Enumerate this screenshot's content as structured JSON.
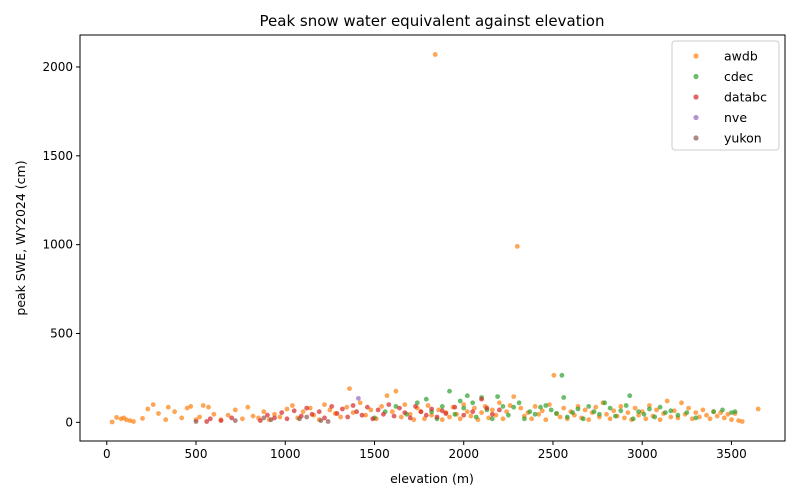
{
  "chart_data": {
    "type": "scatter",
    "title": "Peak snow water equivalent against elevation",
    "xlabel": "elevation (m)",
    "ylabel": "peak SWE, WY2024 (cm)",
    "xlim": [
      -150,
      3800
    ],
    "ylim": [
      -105,
      2180
    ],
    "xticks": [
      0,
      500,
      1000,
      1500,
      2000,
      2500,
      3000,
      3500
    ],
    "yticks": [
      0,
      500,
      1000,
      1500,
      2000
    ],
    "grid": false,
    "legend_position": "top-right",
    "series": [
      {
        "name": "awdb",
        "color": "#ff7f0e",
        "points": [
          [
            30,
            2
          ],
          [
            55,
            28
          ],
          [
            80,
            20
          ],
          [
            95,
            25
          ],
          [
            110,
            15
          ],
          [
            130,
            10
          ],
          [
            150,
            5
          ],
          [
            200,
            22
          ],
          [
            230,
            75
          ],
          [
            260,
            100
          ],
          [
            290,
            50
          ],
          [
            330,
            15
          ],
          [
            345,
            85
          ],
          [
            380,
            60
          ],
          [
            420,
            25
          ],
          [
            450,
            80
          ],
          [
            470,
            90
          ],
          [
            500,
            15
          ],
          [
            520,
            30
          ],
          [
            540,
            95
          ],
          [
            570,
            85
          ],
          [
            600,
            45
          ],
          [
            640,
            15
          ],
          [
            680,
            40
          ],
          [
            720,
            70
          ],
          [
            760,
            20
          ],
          [
            790,
            85
          ],
          [
            820,
            35
          ],
          [
            850,
            25
          ],
          [
            880,
            60
          ],
          [
            910,
            15
          ],
          [
            940,
            45
          ],
          [
            970,
            30
          ],
          [
            1010,
            75
          ],
          [
            1040,
            95
          ],
          [
            1070,
            25
          ],
          [
            1100,
            60
          ],
          [
            1140,
            80
          ],
          [
            1160,
            40
          ],
          [
            1190,
            15
          ],
          [
            1220,
            100
          ],
          [
            1250,
            70
          ],
          [
            1280,
            50
          ],
          [
            1310,
            30
          ],
          [
            1345,
            85
          ],
          [
            1360,
            190
          ],
          [
            1380,
            55
          ],
          [
            1420,
            110
          ],
          [
            1450,
            40
          ],
          [
            1480,
            70
          ],
          [
            1510,
            20
          ],
          [
            1540,
            90
          ],
          [
            1570,
            150
          ],
          [
            1600,
            60
          ],
          [
            1620,
            175
          ],
          [
            1650,
            30
          ],
          [
            1670,
            100
          ],
          [
            1700,
            45
          ],
          [
            1720,
            15
          ],
          [
            1740,
            80
          ],
          [
            1760,
            60
          ],
          [
            1780,
            20
          ],
          [
            1800,
            95
          ],
          [
            1820,
            40
          ],
          [
            1840,
            2070
          ],
          [
            1860,
            70
          ],
          [
            1880,
            15
          ],
          [
            1900,
            55
          ],
          [
            1920,
            30
          ],
          [
            1940,
            85
          ],
          [
            1960,
            45
          ],
          [
            1980,
            20
          ],
          [
            2000,
            100
          ],
          [
            2020,
            60
          ],
          [
            2040,
            35
          ],
          [
            2060,
            80
          ],
          [
            2080,
            15
          ],
          [
            2100,
            55
          ],
          [
            2120,
            90
          ],
          [
            2140,
            25
          ],
          [
            2160,
            70
          ],
          [
            2180,
            40
          ],
          [
            2200,
            110
          ],
          [
            2220,
            20
          ],
          [
            2240,
            60
          ],
          [
            2260,
            95
          ],
          [
            2280,
            145
          ],
          [
            2300,
            990
          ],
          [
            2320,
            80
          ],
          [
            2340,
            35
          ],
          [
            2360,
            55
          ],
          [
            2380,
            20
          ],
          [
            2400,
            90
          ],
          [
            2420,
            45
          ],
          [
            2440,
            65
          ],
          [
            2460,
            15
          ],
          [
            2480,
            100
          ],
          [
            2505,
            265
          ],
          [
            2520,
            50
          ],
          [
            2540,
            30
          ],
          [
            2560,
            80
          ],
          [
            2580,
            20
          ],
          [
            2600,
            60
          ],
          [
            2620,
            40
          ],
          [
            2640,
            90
          ],
          [
            2660,
            25
          ],
          [
            2680,
            70
          ],
          [
            2700,
            15
          ],
          [
            2720,
            55
          ],
          [
            2740,
            85
          ],
          [
            2760,
            30
          ],
          [
            2780,
            110
          ],
          [
            2800,
            45
          ],
          [
            2820,
            20
          ],
          [
            2840,
            65
          ],
          [
            2860,
            35
          ],
          [
            2880,
            90
          ],
          [
            2900,
            25
          ],
          [
            2920,
            55
          ],
          [
            2940,
            15
          ],
          [
            2960,
            80
          ],
          [
            2980,
            40
          ],
          [
            3000,
            60
          ],
          [
            3020,
            20
          ],
          [
            3040,
            95
          ],
          [
            3060,
            35
          ],
          [
            3080,
            70
          ],
          [
            3100,
            15
          ],
          [
            3120,
            50
          ],
          [
            3140,
            120
          ],
          [
            3160,
            30
          ],
          [
            3180,
            65
          ],
          [
            3200,
            25
          ],
          [
            3220,
            110
          ],
          [
            3240,
            45
          ],
          [
            3260,
            80
          ],
          [
            3280,
            20
          ],
          [
            3300,
            55
          ],
          [
            3320,
            30
          ],
          [
            3340,
            70
          ],
          [
            3360,
            40
          ],
          [
            3380,
            20
          ],
          [
            3400,
            60
          ],
          [
            3420,
            35
          ],
          [
            3440,
            55
          ],
          [
            3460,
            25
          ],
          [
            3480,
            45
          ],
          [
            3500,
            15
          ],
          [
            3520,
            50
          ],
          [
            3540,
            10
          ],
          [
            3560,
            5
          ],
          [
            3650,
            75
          ]
        ]
      },
      {
        "name": "cdec",
        "color": "#2ca02c",
        "points": [
          [
            1500,
            25
          ],
          [
            1560,
            60
          ],
          [
            1620,
            90
          ],
          [
            1680,
            45
          ],
          [
            1740,
            110
          ],
          [
            1790,
            130
          ],
          [
            1820,
            60
          ],
          [
            1850,
            20
          ],
          [
            1880,
            90
          ],
          [
            1920,
            175
          ],
          [
            1950,
            45
          ],
          [
            1980,
            120
          ],
          [
            2000,
            80
          ],
          [
            2020,
            150
          ],
          [
            2050,
            110
          ],
          [
            2070,
            30
          ],
          [
            2100,
            140
          ],
          [
            2130,
            70
          ],
          [
            2160,
            20
          ],
          [
            2190,
            145
          ],
          [
            2220,
            90
          ],
          [
            2250,
            40
          ],
          [
            2280,
            85
          ],
          [
            2310,
            110
          ],
          [
            2340,
            20
          ],
          [
            2370,
            60
          ],
          [
            2400,
            45
          ],
          [
            2430,
            85
          ],
          [
            2460,
            95
          ],
          [
            2490,
            70
          ],
          [
            2520,
            50
          ],
          [
            2550,
            265
          ],
          [
            2560,
            140
          ],
          [
            2580,
            30
          ],
          [
            2610,
            55
          ],
          [
            2640,
            75
          ],
          [
            2670,
            20
          ],
          [
            2700,
            90
          ],
          [
            2730,
            60
          ],
          [
            2760,
            45
          ],
          [
            2790,
            110
          ],
          [
            2820,
            80
          ],
          [
            2850,
            35
          ],
          [
            2880,
            65
          ],
          [
            2910,
            95
          ],
          [
            2930,
            150
          ],
          [
            2950,
            20
          ],
          [
            2980,
            60
          ],
          [
            3010,
            45
          ],
          [
            3040,
            75
          ],
          [
            3070,
            30
          ],
          [
            3100,
            85
          ],
          [
            3130,
            55
          ],
          [
            3160,
            65
          ],
          [
            3200,
            40
          ],
          [
            3250,
            55
          ],
          [
            3300,
            25
          ],
          [
            3400,
            60
          ],
          [
            3450,
            70
          ],
          [
            3500,
            55
          ],
          [
            3520,
            60
          ]
        ]
      },
      {
        "name": "databc",
        "color": "#d62728",
        "points": [
          [
            560,
            5
          ],
          [
            580,
            20
          ],
          [
            640,
            10
          ],
          [
            700,
            25
          ],
          [
            860,
            10
          ],
          [
            900,
            40
          ],
          [
            940,
            25
          ],
          [
            980,
            55
          ],
          [
            1010,
            20
          ],
          [
            1050,
            65
          ],
          [
            1090,
            35
          ],
          [
            1120,
            80
          ],
          [
            1150,
            45
          ],
          [
            1190,
            60
          ],
          [
            1220,
            25
          ],
          [
            1260,
            90
          ],
          [
            1290,
            50
          ],
          [
            1320,
            75
          ],
          [
            1350,
            30
          ],
          [
            1380,
            95
          ],
          [
            1400,
            60
          ],
          [
            1430,
            40
          ],
          [
            1460,
            85
          ],
          [
            1490,
            20
          ],
          [
            1520,
            70
          ],
          [
            1550,
            45
          ],
          [
            1580,
            100
          ],
          [
            1610,
            35
          ],
          [
            1640,
            80
          ],
          [
            1670,
            55
          ],
          [
            1700,
            25
          ],
          [
            1730,
            90
          ],
          [
            1760,
            60
          ],
          [
            1790,
            40
          ],
          [
            1820,
            75
          ],
          [
            1850,
            30
          ],
          [
            1880,
            65
          ],
          [
            1900,
            50
          ],
          [
            1950,
            85
          ],
          [
            2000,
            40
          ],
          [
            2050,
            60
          ],
          [
            2100,
            130
          ],
          [
            2130,
            80
          ],
          [
            2160,
            45
          ],
          [
            2200,
            70
          ]
        ]
      },
      {
        "name": "nve",
        "color": "#9467bd",
        "points": [
          [
            1410,
            135
          ]
        ]
      },
      {
        "name": "yukon",
        "color": "#8c564b",
        "points": [
          [
            500,
            5
          ],
          [
            720,
            10
          ],
          [
            880,
            25
          ],
          [
            920,
            15
          ],
          [
            1080,
            20
          ],
          [
            1120,
            30
          ],
          [
            1200,
            10
          ],
          [
            1240,
            5
          ]
        ]
      }
    ]
  }
}
